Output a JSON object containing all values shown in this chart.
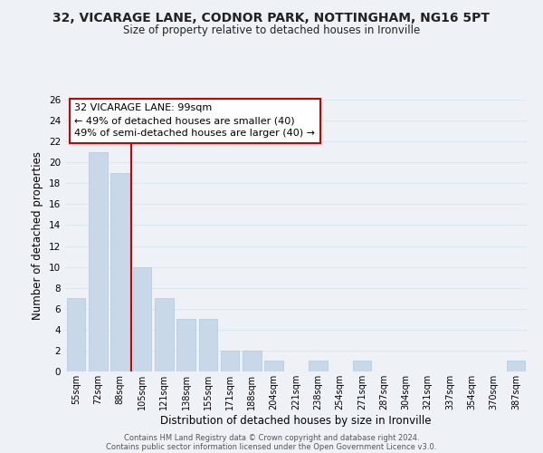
{
  "title_line1": "32, VICARAGE LANE, CODNOR PARK, NOTTINGHAM, NG16 5PT",
  "title_line2": "Size of property relative to detached houses in Ironville",
  "xlabel": "Distribution of detached houses by size in Ironville",
  "ylabel": "Number of detached properties",
  "bar_color": "#c8d8e8",
  "bar_edge_color": "#b0c8e0",
  "categories": [
    "55sqm",
    "72sqm",
    "88sqm",
    "105sqm",
    "121sqm",
    "138sqm",
    "155sqm",
    "171sqm",
    "188sqm",
    "204sqm",
    "221sqm",
    "238sqm",
    "254sqm",
    "271sqm",
    "287sqm",
    "304sqm",
    "321sqm",
    "337sqm",
    "354sqm",
    "370sqm",
    "387sqm"
  ],
  "values": [
    7,
    21,
    19,
    10,
    7,
    5,
    5,
    2,
    2,
    1,
    0,
    1,
    0,
    1,
    0,
    0,
    0,
    0,
    0,
    0,
    1
  ],
  "ylim": [
    0,
    26
  ],
  "yticks": [
    0,
    2,
    4,
    6,
    8,
    10,
    12,
    14,
    16,
    18,
    20,
    22,
    24,
    26
  ],
  "property_line_x": 2.5,
  "annotation_title": "32 VICARAGE LANE: 99sqm",
  "annotation_line1": "← 49% of detached houses are smaller (40)",
  "annotation_line2": "49% of semi-detached houses are larger (40) →",
  "footer_line1": "Contains HM Land Registry data © Crown copyright and database right 2024.",
  "footer_line2": "Contains public sector information licensed under the Open Government Licence v3.0.",
  "grid_color": "#dce8f0",
  "annotation_box_color": "#ffffff",
  "annotation_box_edge": "#cc0000",
  "property_line_color": "#cc0000",
  "background_color": "#eef2f7"
}
